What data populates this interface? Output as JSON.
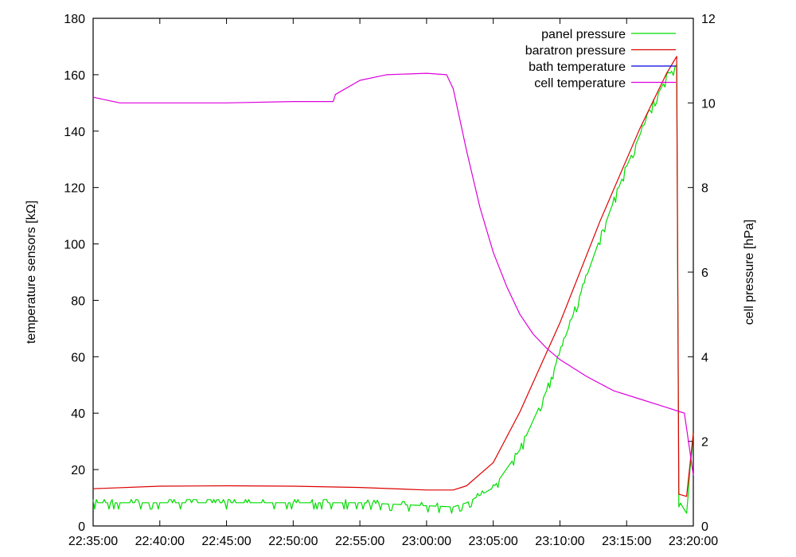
{
  "chart_data": {
    "type": "line",
    "title": "",
    "grid": false,
    "legend_position": "top-right",
    "x_axis": {
      "type": "time",
      "range": [
        "22:35:00",
        "23:20:00"
      ],
      "tick_labels": [
        "22:35:00",
        "22:40:00",
        "22:45:00",
        "22:50:00",
        "22:55:00",
        "23:00:00",
        "23:05:00",
        "23:10:00",
        "23:15:00",
        "23:20:00"
      ]
    },
    "y_left": {
      "label": "temperature sensors [kΩ]",
      "range": [
        0,
        180
      ],
      "ticks": [
        0,
        20,
        40,
        60,
        80,
        100,
        120,
        140,
        160,
        180
      ],
      "tick_labels": [
        "0",
        "20",
        "40",
        "60",
        "80",
        "100",
        "120",
        "140",
        "160",
        "180"
      ]
    },
    "y_right": {
      "label": "cell pressure [hPa]",
      "range": [
        0,
        12
      ],
      "ticks": [
        0,
        2,
        4,
        6,
        8,
        10,
        12
      ],
      "tick_labels": [
        "0",
        "2",
        "4",
        "6",
        "8",
        "10",
        "12"
      ]
    },
    "series": [
      {
        "name": "panel pressure",
        "color": "#00dd00",
        "axis": "right",
        "noisy": true,
        "x": [
          "22:35:00",
          "22:45:00",
          "22:55:00",
          "23:02:00",
          "23:03:00",
          "23:05:00",
          "23:07:00",
          "23:09:00",
          "23:11:00",
          "23:13:00",
          "23:15:00",
          "23:17:00",
          "23:18:00",
          "23:18:45",
          "23:18:55",
          "23:19:30",
          "23:20:00"
        ],
        "y": [
          0.55,
          0.55,
          0.55,
          0.45,
          0.55,
          0.9,
          1.8,
          3.2,
          5.0,
          6.8,
          8.5,
          10.0,
          10.6,
          10.9,
          0.6,
          0.3,
          2.2
        ]
      },
      {
        "name": "baratron pressure",
        "color": "#dd0000",
        "axis": "right",
        "noisy": false,
        "x": [
          "22:35:00",
          "22:40:00",
          "22:45:00",
          "22:50:00",
          "22:55:00",
          "23:00:00",
          "23:02:00",
          "23:03:00",
          "23:05:00",
          "23:07:00",
          "23:10:00",
          "23:13:00",
          "23:16:00",
          "23:18:00",
          "23:18:45",
          "23:18:55",
          "23:19:30",
          "23:20:00"
        ],
        "y": [
          0.88,
          0.94,
          0.95,
          0.94,
          0.91,
          0.85,
          0.85,
          0.95,
          1.5,
          2.7,
          4.8,
          7.2,
          9.4,
          10.7,
          11.1,
          0.75,
          0.7,
          2.2
        ]
      },
      {
        "name": "bath temperature",
        "color": "#0000dd",
        "axis": "left",
        "noisy": false,
        "x": [],
        "y": []
      },
      {
        "name": "cell temperature",
        "color": "#dd00dd",
        "axis": "left",
        "noisy": false,
        "x": [
          "22:35:00",
          "22:37:00",
          "22:40:00",
          "22:45:00",
          "22:50:00",
          "22:52:30",
          "22:53:00",
          "22:53:10",
          "22:55:00",
          "22:57:00",
          "23:00:00",
          "23:01:30",
          "23:02:00",
          "23:03:00",
          "23:04:00",
          "23:05:00",
          "23:06:00",
          "23:07:00",
          "23:08:00",
          "23:09:00",
          "23:10:00",
          "23:12:00",
          "23:14:00",
          "23:16:00",
          "23:18:00",
          "23:19:00",
          "23:19:20",
          "23:20:00"
        ],
        "y": [
          152,
          150,
          150,
          150,
          150.5,
          150.5,
          150.5,
          153,
          158,
          160,
          160.5,
          160,
          155,
          133,
          113,
          97,
          85,
          75,
          68,
          63,
          59,
          53,
          48,
          45,
          42,
          40.5,
          40,
          18
        ]
      }
    ]
  }
}
